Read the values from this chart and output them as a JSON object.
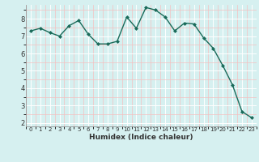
{
  "x": [
    0,
    1,
    2,
    3,
    4,
    5,
    6,
    7,
    8,
    9,
    10,
    11,
    12,
    13,
    14,
    15,
    16,
    17,
    18,
    19,
    20,
    21,
    22,
    23
  ],
  "y": [
    7.3,
    7.45,
    7.2,
    7.0,
    7.6,
    7.9,
    7.1,
    6.55,
    6.55,
    6.7,
    8.1,
    7.45,
    8.65,
    8.5,
    8.1,
    7.3,
    7.75,
    7.7,
    6.9,
    6.3,
    5.3,
    4.2,
    2.65,
    2.3
  ],
  "line_color": "#1a6b5a",
  "marker": "D",
  "marker_size": 2.0,
  "line_width": 1.0,
  "xlabel": "Humidex (Indice chaleur)",
  "bg_color": "#d6f0f0",
  "grid_color": "#ffffff",
  "grid_minor_color": "#f5c0c0",
  "tick_label_color": "#333333",
  "ylim": [
    1.8,
    8.8
  ],
  "xlim": [
    -0.5,
    23.5
  ],
  "yticks": [
    2,
    3,
    4,
    5,
    6,
    7,
    8
  ],
  "xticks": [
    0,
    1,
    2,
    3,
    4,
    5,
    6,
    7,
    8,
    9,
    10,
    11,
    12,
    13,
    14,
    15,
    16,
    17,
    18,
    19,
    20,
    21,
    22,
    23
  ],
  "xlabel_fontsize": 6.5,
  "tick_fontsize_x": 5.0,
  "tick_fontsize_y": 6.0
}
